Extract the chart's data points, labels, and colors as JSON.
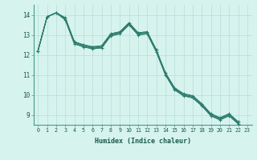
{
  "xlabel": "Humidex (Indice chaleur)",
  "ylabel": "",
  "background_color": "#d6f3ee",
  "grid_color": "#b8ddd8",
  "line_color": "#2e7d6e",
  "xlim": [
    -0.5,
    23.5
  ],
  "ylim": [
    8.5,
    14.5
  ],
  "yticks": [
    9,
    10,
    11,
    12,
    13,
    14
  ],
  "xticks": [
    0,
    1,
    2,
    3,
    4,
    5,
    6,
    7,
    8,
    9,
    10,
    11,
    12,
    13,
    14,
    15,
    16,
    17,
    18,
    19,
    20,
    21,
    22,
    23
  ],
  "series_lines": [
    [
      12.2,
      13.9,
      14.1,
      13.85,
      12.65,
      12.5,
      12.4,
      12.45,
      13.05,
      13.15,
      13.6,
      13.1,
      13.15,
      12.25,
      11.1,
      10.35,
      10.05,
      9.95,
      9.55,
      9.05,
      8.85,
      9.05,
      8.65
    ],
    [
      12.2,
      13.9,
      14.1,
      13.82,
      12.62,
      12.47,
      12.37,
      12.42,
      13.02,
      13.12,
      13.57,
      13.07,
      13.12,
      12.22,
      11.07,
      10.32,
      10.02,
      9.92,
      9.52,
      9.02,
      8.82,
      9.02,
      8.62
    ],
    [
      12.2,
      13.9,
      14.1,
      13.78,
      12.58,
      12.43,
      12.33,
      12.38,
      12.98,
      13.08,
      13.53,
      13.03,
      13.08,
      12.18,
      11.03,
      10.28,
      9.98,
      9.88,
      9.48,
      8.98,
      8.78,
      8.98,
      8.58
    ],
    [
      12.2,
      13.9,
      14.1,
      13.75,
      12.55,
      12.4,
      12.3,
      12.35,
      12.95,
      13.05,
      13.5,
      13.0,
      13.05,
      12.15,
      11.0,
      10.25,
      9.95,
      9.85,
      9.45,
      8.95,
      8.75,
      8.95,
      8.55
    ]
  ]
}
